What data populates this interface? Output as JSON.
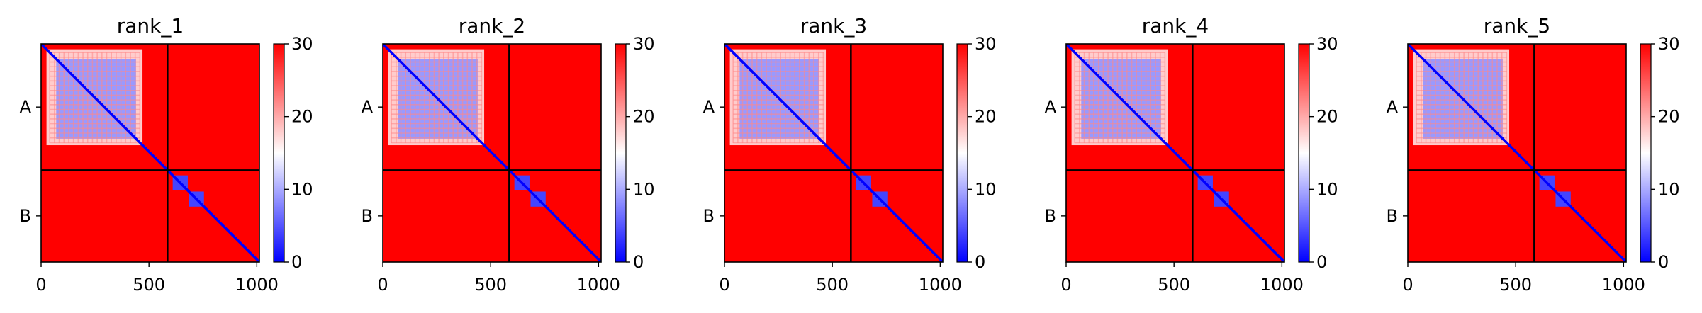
{
  "chart_data": {
    "type": "heatmap",
    "colormap": {
      "name": "bwr",
      "low_color": "#0000ff",
      "mid_color": "#ffffff",
      "high_color": "#ff0000",
      "vmin": 0,
      "vmax": 30,
      "ticks": [
        "0",
        "10",
        "20",
        "30"
      ]
    },
    "axes": {
      "xlim": [
        0,
        1012
      ],
      "ylim": [
        1012,
        0
      ],
      "x_ticks": [
        {
          "value": 0,
          "label": "0"
        },
        {
          "value": 500,
          "label": "500"
        },
        {
          "value": 1000,
          "label": "1000"
        }
      ],
      "y_ticks": [
        {
          "value": 293,
          "label": "A"
        },
        {
          "value": 798,
          "label": "B"
        }
      ],
      "chain_boundary": 586
    },
    "panels": [
      {
        "title": "rank_1",
        "blocks": [
          {
            "x": [
              0,
              586
            ],
            "y": [
              0,
              586
            ],
            "value": 30
          },
          {
            "x": [
              25,
              470
            ],
            "y": [
              25,
              470
            ],
            "value": 18
          },
          {
            "x": [
              70,
              440
            ],
            "y": [
              70,
              440
            ],
            "value": 9
          },
          {
            "x": [
              586,
              1012
            ],
            "y": [
              0,
              586
            ],
            "value": 30
          },
          {
            "x": [
              0,
              586
            ],
            "y": [
              586,
              1012
            ],
            "value": 30
          },
          {
            "x": [
              586,
              1012
            ],
            "y": [
              586,
              1012
            ],
            "value": 30
          },
          {
            "x": [
              610,
              680
            ],
            "y": [
              610,
              680
            ],
            "value": 4
          },
          {
            "x": [
              685,
              755
            ],
            "y": [
              685,
              755
            ],
            "value": 4
          }
        ],
        "diagonal_value": 0
      },
      {
        "title": "rank_2",
        "blocks": [
          {
            "x": [
              0,
              586
            ],
            "y": [
              0,
              586
            ],
            "value": 30
          },
          {
            "x": [
              25,
              470
            ],
            "y": [
              25,
              470
            ],
            "value": 18
          },
          {
            "x": [
              70,
              440
            ],
            "y": [
              70,
              440
            ],
            "value": 9
          },
          {
            "x": [
              586,
              1012
            ],
            "y": [
              0,
              586
            ],
            "value": 30
          },
          {
            "x": [
              0,
              586
            ],
            "y": [
              586,
              1012
            ],
            "value": 30
          },
          {
            "x": [
              586,
              1012
            ],
            "y": [
              586,
              1012
            ],
            "value": 30
          },
          {
            "x": [
              610,
              680
            ],
            "y": [
              610,
              680
            ],
            "value": 4
          },
          {
            "x": [
              685,
              755
            ],
            "y": [
              685,
              755
            ],
            "value": 4
          }
        ],
        "diagonal_value": 0
      },
      {
        "title": "rank_3",
        "blocks": [
          {
            "x": [
              0,
              586
            ],
            "y": [
              0,
              586
            ],
            "value": 30
          },
          {
            "x": [
              25,
              470
            ],
            "y": [
              25,
              470
            ],
            "value": 18
          },
          {
            "x": [
              70,
              440
            ],
            "y": [
              70,
              440
            ],
            "value": 9
          },
          {
            "x": [
              586,
              1012
            ],
            "y": [
              0,
              586
            ],
            "value": 30
          },
          {
            "x": [
              0,
              586
            ],
            "y": [
              586,
              1012
            ],
            "value": 30
          },
          {
            "x": [
              586,
              1012
            ],
            "y": [
              586,
              1012
            ],
            "value": 30
          },
          {
            "x": [
              610,
              680
            ],
            "y": [
              610,
              680
            ],
            "value": 4
          },
          {
            "x": [
              685,
              755
            ],
            "y": [
              685,
              755
            ],
            "value": 4
          }
        ],
        "diagonal_value": 0
      },
      {
        "title": "rank_4",
        "blocks": [
          {
            "x": [
              0,
              586
            ],
            "y": [
              0,
              586
            ],
            "value": 30
          },
          {
            "x": [
              25,
              470
            ],
            "y": [
              25,
              470
            ],
            "value": 18
          },
          {
            "x": [
              70,
              440
            ],
            "y": [
              70,
              440
            ],
            "value": 9
          },
          {
            "x": [
              586,
              1012
            ],
            "y": [
              0,
              586
            ],
            "value": 30
          },
          {
            "x": [
              0,
              586
            ],
            "y": [
              586,
              1012
            ],
            "value": 30
          },
          {
            "x": [
              586,
              1012
            ],
            "y": [
              586,
              1012
            ],
            "value": 30
          },
          {
            "x": [
              610,
              680
            ],
            "y": [
              610,
              680
            ],
            "value": 4
          },
          {
            "x": [
              685,
              755
            ],
            "y": [
              685,
              755
            ],
            "value": 4
          }
        ],
        "diagonal_value": 0
      },
      {
        "title": "rank_5",
        "blocks": [
          {
            "x": [
              0,
              586
            ],
            "y": [
              0,
              586
            ],
            "value": 30
          },
          {
            "x": [
              25,
              470
            ],
            "y": [
              25,
              470
            ],
            "value": 18
          },
          {
            "x": [
              70,
              440
            ],
            "y": [
              70,
              440
            ],
            "value": 9
          },
          {
            "x": [
              586,
              1012
            ],
            "y": [
              0,
              586
            ],
            "value": 30
          },
          {
            "x": [
              0,
              586
            ],
            "y": [
              586,
              1012
            ],
            "value": 30
          },
          {
            "x": [
              586,
              1012
            ],
            "y": [
              586,
              1012
            ],
            "value": 30
          },
          {
            "x": [
              610,
              680
            ],
            "y": [
              610,
              680
            ],
            "value": 4
          },
          {
            "x": [
              685,
              755
            ],
            "y": [
              685,
              755
            ],
            "value": 4
          }
        ],
        "diagonal_value": 0
      }
    ]
  }
}
